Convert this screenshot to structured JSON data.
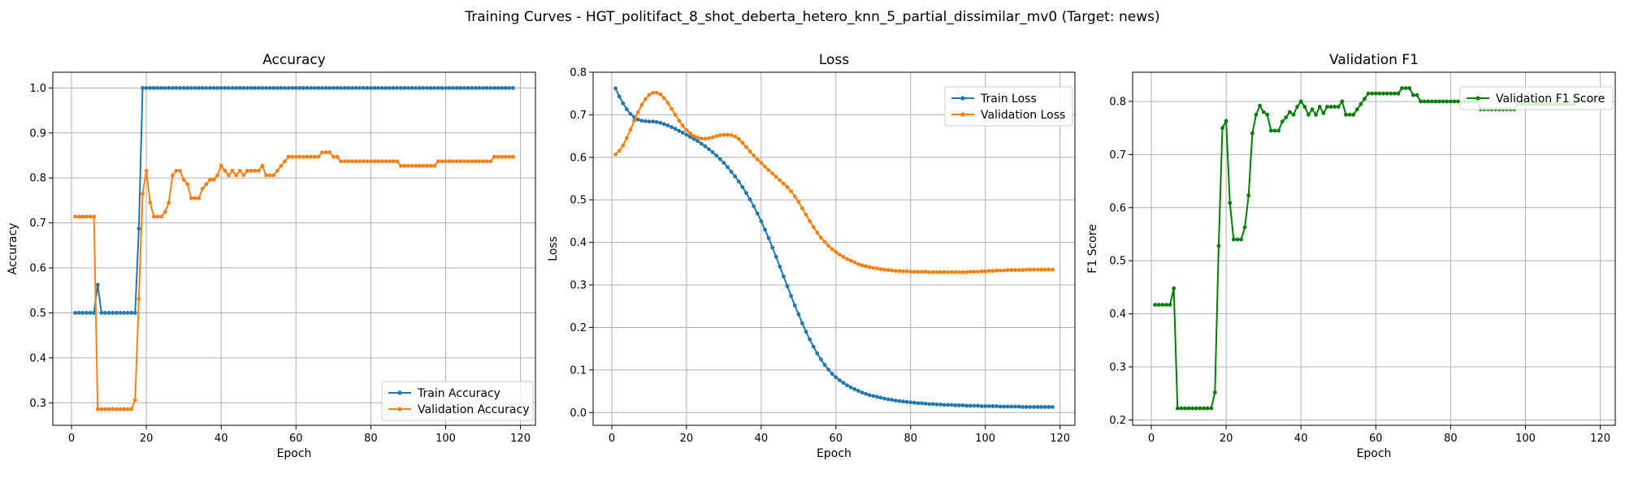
{
  "figure": {
    "title": "Training Curves - HGT_politifact_8_shot_deberta_hetero_knn_5_partial_dissimilar_mv0 (Target: news)"
  },
  "chart_data": [
    {
      "type": "line",
      "title": "Accuracy",
      "xlabel": "Epoch",
      "ylabel": "Accuracy",
      "xlim": [
        -5,
        124
      ],
      "ylim": [
        0.25,
        1.035
      ],
      "xticks": [
        0,
        20,
        40,
        60,
        80,
        100,
        120
      ],
      "yticks": [
        0.3,
        0.4,
        0.5,
        0.6,
        0.7,
        0.8,
        0.9,
        1.0
      ],
      "ytick_labels": [
        "0.3",
        "0.4",
        "0.5",
        "0.6",
        "0.7",
        "0.8",
        "0.9",
        "1.0"
      ],
      "grid": true,
      "legend": "lower-right",
      "x_start": 1,
      "series": [
        {
          "name": "Train Accuracy",
          "color": "#1f77b4",
          "marker": "circle",
          "values": [
            0.5,
            0.5,
            0.5,
            0.5,
            0.5,
            0.5,
            0.5625,
            0.5,
            0.5,
            0.5,
            0.5,
            0.5,
            0.5,
            0.5,
            0.5,
            0.5,
            0.5,
            0.6875,
            1.0,
            1.0,
            1.0,
            1.0,
            1.0,
            1.0,
            1.0,
            1.0,
            1.0,
            1.0,
            1.0,
            1.0,
            1.0,
            1.0,
            1.0,
            1.0,
            1.0,
            1.0,
            1.0,
            1.0,
            1.0,
            1.0,
            1.0,
            1.0,
            1.0,
            1.0,
            1.0,
            1.0,
            1.0,
            1.0,
            1.0,
            1.0,
            1.0,
            1.0,
            1.0,
            1.0,
            1.0,
            1.0,
            1.0,
            1.0,
            1.0,
            1.0,
            1.0,
            1.0,
            1.0,
            1.0,
            1.0,
            1.0,
            1.0,
            1.0,
            1.0,
            1.0,
            1.0,
            1.0,
            1.0,
            1.0,
            1.0,
            1.0,
            1.0,
            1.0,
            1.0,
            1.0,
            1.0,
            1.0,
            1.0,
            1.0,
            1.0,
            1.0,
            1.0,
            1.0,
            1.0,
            1.0,
            1.0,
            1.0,
            1.0,
            1.0,
            1.0,
            1.0,
            1.0,
            1.0,
            1.0,
            1.0,
            1.0,
            1.0,
            1.0,
            1.0,
            1.0,
            1.0,
            1.0,
            1.0,
            1.0,
            1.0,
            1.0,
            1.0,
            1.0,
            1.0,
            1.0,
            1.0,
            1.0,
            1.0
          ]
        },
        {
          "name": "Validation Accuracy",
          "color": "#ff7f0e",
          "marker": "circle",
          "values": [
            0.714,
            0.714,
            0.714,
            0.714,
            0.714,
            0.714,
            0.286,
            0.286,
            0.286,
            0.286,
            0.286,
            0.286,
            0.286,
            0.286,
            0.286,
            0.286,
            0.306,
            0.531,
            0.765,
            0.816,
            0.745,
            0.714,
            0.714,
            0.714,
            0.724,
            0.745,
            0.806,
            0.816,
            0.816,
            0.796,
            0.786,
            0.755,
            0.755,
            0.755,
            0.776,
            0.786,
            0.796,
            0.796,
            0.806,
            0.827,
            0.816,
            0.806,
            0.816,
            0.806,
            0.816,
            0.806,
            0.816,
            0.816,
            0.816,
            0.816,
            0.827,
            0.806,
            0.806,
            0.806,
            0.816,
            0.827,
            0.837,
            0.847,
            0.847,
            0.847,
            0.847,
            0.847,
            0.847,
            0.847,
            0.847,
            0.847,
            0.857,
            0.857,
            0.857,
            0.847,
            0.847,
            0.837,
            0.837,
            0.837,
            0.837,
            0.837,
            0.837,
            0.837,
            0.837,
            0.837,
            0.837,
            0.837,
            0.837,
            0.837,
            0.837,
            0.837,
            0.837,
            0.827,
            0.827,
            0.827,
            0.827,
            0.827,
            0.827,
            0.827,
            0.827,
            0.827,
            0.827,
            0.837,
            0.837,
            0.837,
            0.837,
            0.837,
            0.837,
            0.837,
            0.837,
            0.837,
            0.837,
            0.837,
            0.837,
            0.837,
            0.837,
            0.837,
            0.847,
            0.847,
            0.847,
            0.847,
            0.847,
            0.847
          ]
        }
      ]
    },
    {
      "type": "line",
      "title": "Loss",
      "xlabel": "Epoch",
      "ylabel": "Loss",
      "xlim": [
        -5,
        124
      ],
      "ylim": [
        -0.03,
        0.8
      ],
      "xticks": [
        0,
        20,
        40,
        60,
        80,
        100,
        120
      ],
      "yticks": [
        0.0,
        0.1,
        0.2,
        0.3,
        0.4,
        0.5,
        0.6,
        0.7,
        0.8
      ],
      "ytick_labels": [
        "0.0",
        "0.1",
        "0.2",
        "0.3",
        "0.4",
        "0.5",
        "0.6",
        "0.7",
        "0.8"
      ],
      "grid": true,
      "legend": "upper-right",
      "x_start": 1,
      "series": [
        {
          "name": "Train Loss",
          "color": "#1f77b4",
          "marker": "circle",
          "values": [
            0.762,
            0.743,
            0.727,
            0.713,
            0.702,
            0.694,
            0.689,
            0.686,
            0.685,
            0.684,
            0.684,
            0.683,
            0.681,
            0.678,
            0.675,
            0.671,
            0.667,
            0.662,
            0.658,
            0.653,
            0.648,
            0.643,
            0.638,
            0.632,
            0.626,
            0.619,
            0.612,
            0.604,
            0.596,
            0.587,
            0.577,
            0.566,
            0.555,
            0.543,
            0.53,
            0.516,
            0.501,
            0.485,
            0.468,
            0.45,
            0.43,
            0.41,
            0.388,
            0.366,
            0.343,
            0.32,
            0.297,
            0.274,
            0.252,
            0.231,
            0.21,
            0.19,
            0.172,
            0.155,
            0.139,
            0.125,
            0.112,
            0.101,
            0.091,
            0.083,
            0.076,
            0.07,
            0.064,
            0.059,
            0.055,
            0.051,
            0.047,
            0.044,
            0.041,
            0.039,
            0.037,
            0.035,
            0.033,
            0.031,
            0.03,
            0.028,
            0.027,
            0.026,
            0.025,
            0.024,
            0.023,
            0.022,
            0.022,
            0.021,
            0.02,
            0.02,
            0.019,
            0.019,
            0.018,
            0.018,
            0.018,
            0.017,
            0.017,
            0.017,
            0.016,
            0.016,
            0.016,
            0.016,
            0.015,
            0.015,
            0.015,
            0.015,
            0.015,
            0.014,
            0.014,
            0.014,
            0.014,
            0.014,
            0.014,
            0.013,
            0.013,
            0.013,
            0.013,
            0.013,
            0.013,
            0.013,
            0.013,
            0.013
          ]
        },
        {
          "name": "Validation Loss",
          "color": "#ff7f0e",
          "marker": "circle",
          "values": [
            0.607,
            0.615,
            0.628,
            0.645,
            0.665,
            0.686,
            0.706,
            0.723,
            0.737,
            0.747,
            0.752,
            0.752,
            0.748,
            0.739,
            0.728,
            0.714,
            0.7,
            0.686,
            0.674,
            0.664,
            0.656,
            0.65,
            0.646,
            0.644,
            0.644,
            0.645,
            0.647,
            0.65,
            0.652,
            0.653,
            0.653,
            0.652,
            0.649,
            0.643,
            0.634,
            0.624,
            0.614,
            0.604,
            0.595,
            0.587,
            0.578,
            0.57,
            0.562,
            0.554,
            0.546,
            0.538,
            0.53,
            0.52,
            0.508,
            0.495,
            0.48,
            0.465,
            0.45,
            0.436,
            0.423,
            0.411,
            0.401,
            0.392,
            0.384,
            0.377,
            0.371,
            0.366,
            0.361,
            0.357,
            0.353,
            0.349,
            0.346,
            0.344,
            0.342,
            0.34,
            0.339,
            0.337,
            0.336,
            0.335,
            0.334,
            0.333,
            0.333,
            0.332,
            0.332,
            0.331,
            0.331,
            0.331,
            0.331,
            0.331,
            0.33,
            0.33,
            0.33,
            0.33,
            0.33,
            0.33,
            0.33,
            0.33,
            0.33,
            0.33,
            0.33,
            0.331,
            0.331,
            0.331,
            0.332,
            0.332,
            0.333,
            0.333,
            0.334,
            0.334,
            0.334,
            0.335,
            0.335,
            0.335,
            0.335,
            0.335,
            0.336,
            0.336,
            0.336,
            0.336,
            0.336,
            0.336,
            0.336,
            0.336
          ]
        }
      ]
    },
    {
      "type": "line",
      "title": "Validation F1",
      "xlabel": "Epoch",
      "ylabel": "F1 Score",
      "xlim": [
        -5,
        124
      ],
      "ylim": [
        0.19,
        0.855
      ],
      "xticks": [
        0,
        20,
        40,
        60,
        80,
        100,
        120
      ],
      "yticks": [
        0.2,
        0.3,
        0.4,
        0.5,
        0.6,
        0.7,
        0.8
      ],
      "ytick_labels": [
        "0.2",
        "0.3",
        "0.4",
        "0.5",
        "0.6",
        "0.7",
        "0.8"
      ],
      "grid": true,
      "legend": "upper-right",
      "x_start": 1,
      "series": [
        {
          "name": "Validation F1 Score",
          "color": "#008000",
          "marker": "circle",
          "values": [
            0.417,
            0.417,
            0.417,
            0.417,
            0.417,
            0.448,
            0.222,
            0.222,
            0.222,
            0.222,
            0.222,
            0.222,
            0.222,
            0.222,
            0.222,
            0.222,
            0.252,
            0.528,
            0.75,
            0.763,
            0.609,
            0.54,
            0.54,
            0.54,
            0.563,
            0.623,
            0.74,
            0.775,
            0.792,
            0.78,
            0.775,
            0.745,
            0.745,
            0.745,
            0.762,
            0.77,
            0.78,
            0.775,
            0.79,
            0.8,
            0.79,
            0.775,
            0.785,
            0.775,
            0.79,
            0.778,
            0.79,
            0.79,
            0.79,
            0.79,
            0.8,
            0.775,
            0.775,
            0.775,
            0.785,
            0.795,
            0.805,
            0.815,
            0.815,
            0.815,
            0.815,
            0.815,
            0.815,
            0.815,
            0.815,
            0.815,
            0.825,
            0.825,
            0.825,
            0.812,
            0.812,
            0.8,
            0.8,
            0.8,
            0.8,
            0.8,
            0.8,
            0.8,
            0.8,
            0.8,
            0.8,
            0.8,
            0.8,
            0.8,
            0.8,
            0.8,
            0.8,
            0.785,
            0.785,
            0.785,
            0.785,
            0.785,
            0.785,
            0.785,
            0.785,
            0.785,
            0.785,
            0.795,
            0.795,
            0.795,
            0.795,
            0.795,
            0.795,
            0.795,
            0.795,
            0.795,
            0.795,
            0.795,
            0.795,
            0.795,
            0.795,
            0.795,
            0.795,
            0.802,
            0.802,
            0.802,
            0.802,
            0.802
          ]
        }
      ]
    }
  ]
}
